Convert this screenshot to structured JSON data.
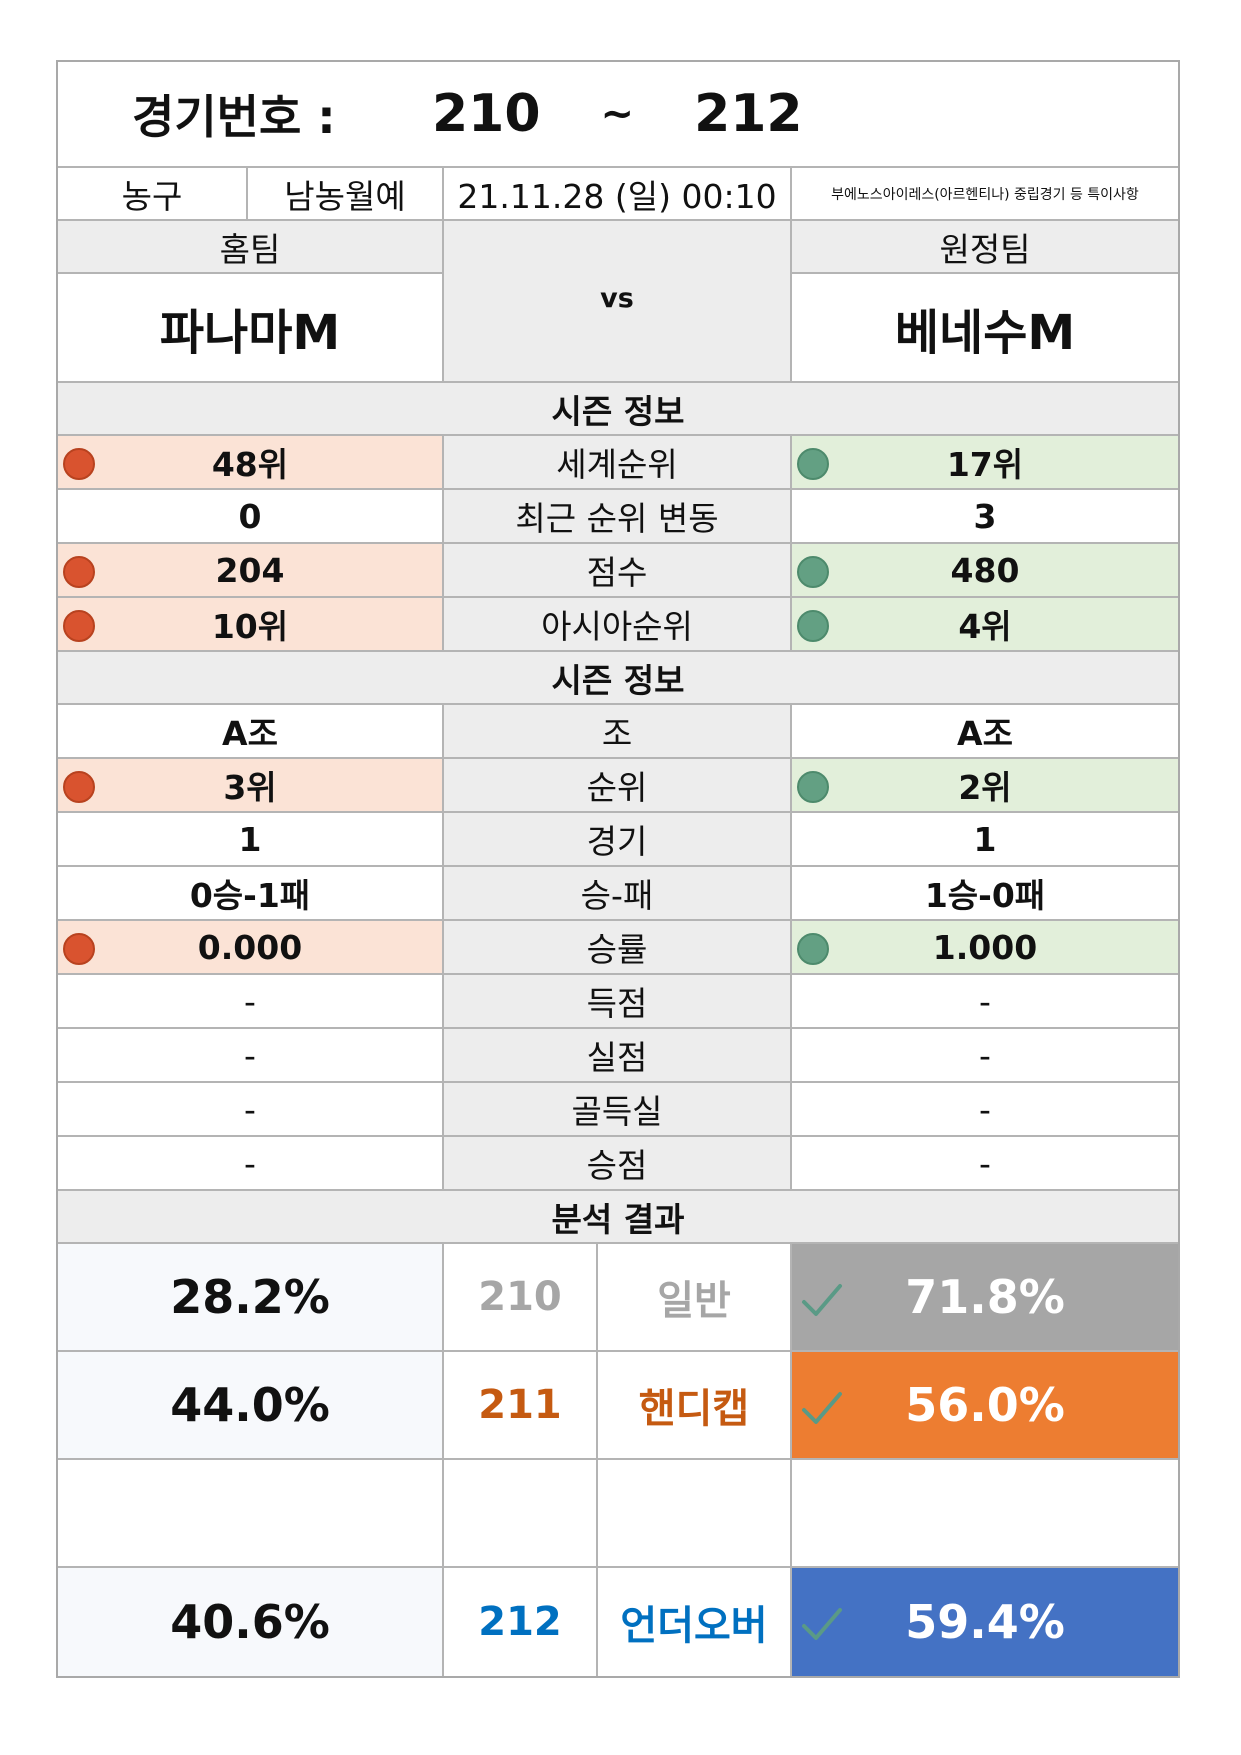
{
  "header": {
    "label": "경기번호 :",
    "from": "210",
    "tilde": "~",
    "to": "212"
  },
  "info": {
    "sport": "농구",
    "league": "남농월예",
    "datetime": "21.11.28 (일) 00:10",
    "note": "부에노스아이레스(아르헨티나) 중립경기 등 특이사항"
  },
  "teams": {
    "home_label": "홈팀",
    "away_label": "원정팀",
    "home_name": "파나마M",
    "away_name": "베네수M",
    "vs": "vs"
  },
  "season1": {
    "title": "시즌 정보",
    "rows": [
      {
        "home": "48위",
        "label": "세계순위",
        "away": "17위"
      },
      {
        "home": "0",
        "label": "최근 순위 변동",
        "away": "3"
      },
      {
        "home": "204",
        "label": "점수",
        "away": "480"
      },
      {
        "home": "10위",
        "label": "아시아순위",
        "away": "4위"
      }
    ]
  },
  "season2": {
    "title": "시즌 정보",
    "rows": [
      {
        "home": "A조",
        "label": "조",
        "away": "A조"
      },
      {
        "home": "3위",
        "label": "순위",
        "away": "2위"
      },
      {
        "home": "1",
        "label": "경기",
        "away": "1"
      },
      {
        "home": "0승-1패",
        "label": "승-패",
        "away": "1승-0패"
      },
      {
        "home": "0.000",
        "label": "승률",
        "away": "1.000"
      },
      {
        "home": "-",
        "label": "득점",
        "away": "-"
      },
      {
        "home": "-",
        "label": "실점",
        "away": "-"
      },
      {
        "home": "-",
        "label": "골득실",
        "away": "-"
      },
      {
        "home": "-",
        "label": "승점",
        "away": "-"
      }
    ]
  },
  "analysis": {
    "title": "분석 결과",
    "rows": [
      {
        "left": "28.2%",
        "code": "210",
        "kind": "일반",
        "right": "71.8%",
        "color": "#a6a6a6",
        "text_color": "#a6a6a6"
      },
      {
        "left": "44.0%",
        "code": "211",
        "kind": "핸디캡",
        "right": "56.0%",
        "color": "#ed7d31",
        "text_color": "#c55a11"
      },
      {
        "left": "",
        "code": "",
        "kind": "",
        "right": "",
        "color": "#ffffff",
        "text_color": "#000000"
      },
      {
        "left": "40.6%",
        "code": "212",
        "kind": "언더오버",
        "right": "59.4%",
        "color": "#4472c4",
        "text_color": "#0070c0"
      }
    ]
  },
  "colors": {
    "home_favor": "#fbe3d6",
    "away_favor": "#e2efda",
    "red_dot": "#d9532f",
    "green_dot": "#63a083"
  }
}
